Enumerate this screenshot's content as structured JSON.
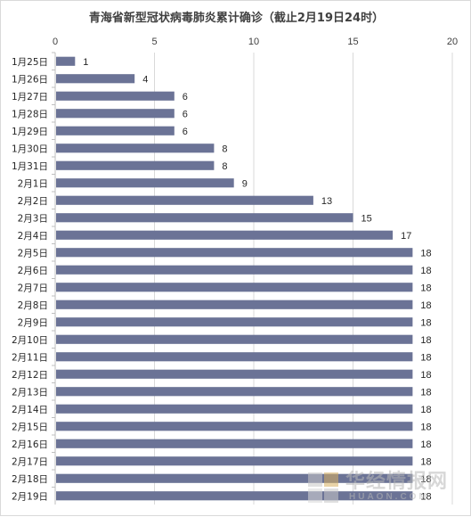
{
  "chart_data": {
    "type": "bar",
    "orientation": "horizontal",
    "title": "青海省新型冠状病毒肺炎累计确诊（截止2月19日24时）",
    "categories": [
      "1月25日",
      "1月26日",
      "1月27日",
      "1月28日",
      "1月29日",
      "1月30日",
      "1月31日",
      "2月1日",
      "2月2日",
      "2月3日",
      "2月4日",
      "2月5日",
      "2月6日",
      "2月7日",
      "2月8日",
      "2月9日",
      "2月10日",
      "2月11日",
      "2月12日",
      "2月13日",
      "2月14日",
      "2月15日",
      "2月16日",
      "2月17日",
      "2月18日",
      "2月19日"
    ],
    "values": [
      1,
      4,
      6,
      6,
      6,
      8,
      8,
      9,
      13,
      15,
      17,
      18,
      18,
      18,
      18,
      18,
      18,
      18,
      18,
      18,
      18,
      18,
      18,
      18,
      18,
      18
    ],
    "xlim": [
      0,
      20
    ],
    "xticks": [
      0,
      5,
      10,
      15,
      20
    ],
    "xaxis_position": "top",
    "grid": true,
    "bar_color": "#6b7396"
  },
  "watermark": {
    "text_cn": "华经情报网",
    "text_en": "HUAON.COM"
  }
}
